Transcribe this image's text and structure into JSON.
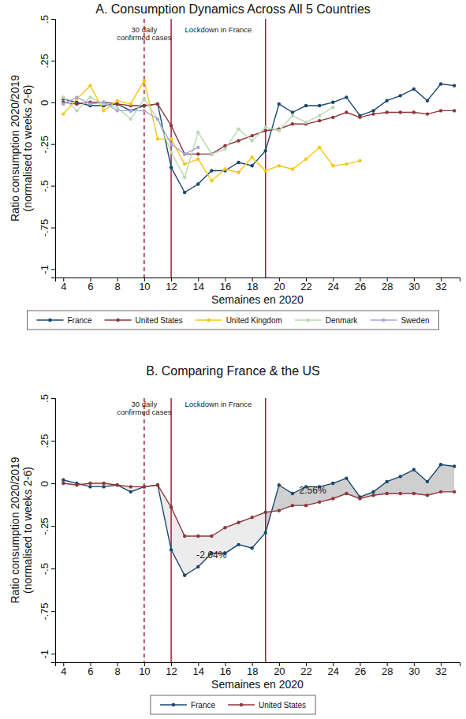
{
  "chart_data": [
    {
      "type": "line",
      "title": "A. Consumption Dynamics Across All 5 Countries",
      "x_label": "Semaines en 2020",
      "y_label": [
        "Ratio consumption 2020/2019",
        "(normalised to weeks 2-6)"
      ],
      "x": [
        4,
        5,
        6,
        7,
        8,
        9,
        10,
        11,
        12,
        13,
        14,
        15,
        16,
        17,
        18,
        19,
        20,
        21,
        22,
        23,
        24,
        25,
        26,
        27,
        28,
        29,
        30,
        31,
        32,
        33
      ],
      "xlim": [
        3.4,
        33.4
      ],
      "xticks": [
        4,
        6,
        8,
        10,
        12,
        14,
        16,
        18,
        20,
        22,
        24,
        26,
        28,
        30,
        32
      ],
      "ylim": [
        -1.05,
        0.5
      ],
      "yticks": [
        -1,
        {
          "value": -0.75,
          "label": "-.75"
        },
        {
          "value": -0.5,
          "label": "-.5"
        },
        {
          "value": -0.25,
          "label": "-.25"
        },
        0,
        {
          "value": 0.25,
          "label": ".25"
        },
        {
          "value": 0.5,
          "label": ".5"
        }
      ],
      "grid": false,
      "legend": "bottom",
      "marker": "circle",
      "vlines": [
        {
          "x": 10,
          "line_style": "dashed"
        },
        {
          "x": 12,
          "line_style": "solid"
        },
        {
          "x": 19,
          "line_style": "solid"
        }
      ],
      "annotations": [
        {
          "text": [
            "30 daily",
            "confirmed cases"
          ],
          "x": 10,
          "y": 0.42
        },
        {
          "text": [
            "Lockdown in France"
          ],
          "x": 15.5,
          "y": 0.42
        }
      ],
      "series": [
        {
          "name": "France",
          "color": "#1a476f",
          "values": [
            0.02,
            0.0,
            -0.02,
            -0.02,
            -0.01,
            -0.05,
            -0.02,
            -0.01,
            -0.39,
            -0.54,
            -0.49,
            -0.41,
            -0.41,
            -0.36,
            -0.38,
            -0.29,
            -0.01,
            -0.06,
            -0.02,
            -0.02,
            0.0,
            0.03,
            -0.08,
            -0.05,
            0.01,
            0.04,
            0.08,
            0.01,
            0.11,
            0.1
          ]
        },
        {
          "name": "United States",
          "color": "#90353b",
          "values": [
            0.0,
            -0.01,
            0.0,
            0.0,
            -0.01,
            -0.02,
            -0.02,
            -0.01,
            -0.14,
            -0.31,
            -0.31,
            -0.31,
            -0.26,
            -0.23,
            -0.2,
            -0.17,
            -0.16,
            -0.13,
            -0.13,
            -0.11,
            -0.09,
            -0.06,
            -0.09,
            -0.07,
            -0.06,
            -0.06,
            -0.06,
            -0.07,
            -0.05,
            -0.05
          ]
        },
        {
          "name": "United Kingdom",
          "color": "#f5c710",
          "values": [
            -0.07,
            0.02,
            0.1,
            -0.05,
            0.01,
            -0.01,
            0.13,
            -0.22,
            -0.22,
            -0.37,
            -0.34,
            -0.47,
            -0.4,
            -0.42,
            -0.33,
            -0.41,
            -0.38,
            -0.4,
            -0.34,
            -0.27,
            -0.38,
            -0.37,
            -0.35,
            null,
            null,
            null,
            null,
            null,
            null,
            null
          ]
        },
        {
          "name": "Denmark",
          "color": "#b8d8b0",
          "values": [
            0.03,
            -0.05,
            0.03,
            -0.01,
            -0.03,
            -0.1,
            0.02,
            -0.1,
            -0.3,
            -0.45,
            -0.18,
            -0.31,
            -0.28,
            -0.16,
            -0.23,
            -0.15,
            -0.17,
            -0.08,
            -0.12,
            -0.08,
            -0.03,
            null,
            null,
            null,
            null,
            null,
            null,
            null,
            null,
            null
          ]
        },
        {
          "name": "Sweden",
          "color": "#a9a5e0",
          "values": [
            -0.01,
            0.03,
            -0.01,
            0.0,
            -0.05,
            -0.05,
            -0.05,
            -0.1,
            -0.25,
            -0.31,
            -0.27,
            null,
            null,
            null,
            null,
            null,
            null,
            null,
            null,
            null,
            null,
            null,
            null,
            null,
            null,
            null,
            null,
            null,
            null,
            null
          ]
        }
      ]
    },
    {
      "type": "difference",
      "title": "B. Comparing France & the US",
      "x_label": "Semaines en 2020",
      "y_label": [
        "Ratio consumption 2020/2019",
        "(normalised to weeks 2-6)"
      ],
      "x": [
        4,
        5,
        6,
        7,
        8,
        9,
        10,
        11,
        12,
        13,
        14,
        15,
        16,
        17,
        18,
        19,
        20,
        21,
        22,
        23,
        24,
        25,
        26,
        27,
        28,
        29,
        30,
        31,
        32,
        33
      ],
      "xlim": [
        3.4,
        33.4
      ],
      "xticks": [
        4,
        6,
        8,
        10,
        12,
        14,
        16,
        18,
        20,
        22,
        24,
        26,
        28,
        30,
        32
      ],
      "ylim": [
        -1.05,
        0.5
      ],
      "yticks": [
        -1,
        {
          "value": -0.75,
          "label": "-.75"
        },
        {
          "value": -0.5,
          "label": "-.5"
        },
        {
          "value": -0.25,
          "label": "-.25"
        },
        0,
        {
          "value": 0.25,
          "label": ".25"
        },
        {
          "value": 0.5,
          "label": ".5"
        }
      ],
      "grid": false,
      "legend": "bottom",
      "marker": "circle",
      "vlines": [
        {
          "x": 10,
          "line_style": "dashed"
        },
        {
          "x": 12,
          "line_style": "solid"
        },
        {
          "x": 19,
          "line_style": "solid"
        }
      ],
      "annotations": [
        {
          "text": [
            "30 daily",
            "confirmed cases"
          ],
          "x": 10,
          "y": 0.45
        },
        {
          "text": [
            "Lockdown in France"
          ],
          "x": 15.5,
          "y": 0.45
        },
        {
          "text": [
            "-2.64%"
          ],
          "x": 15,
          "y": -0.44
        },
        {
          "text": [
            "2.56%"
          ],
          "x": 22.5,
          "y": -0.06
        }
      ],
      "series": [
        {
          "name": "France",
          "color": "#1a476f",
          "values": [
            0.02,
            0.0,
            -0.02,
            -0.02,
            -0.01,
            -0.05,
            -0.02,
            -0.01,
            -0.39,
            -0.54,
            -0.49,
            -0.41,
            -0.41,
            -0.36,
            -0.38,
            -0.29,
            -0.01,
            -0.06,
            -0.02,
            -0.02,
            0.0,
            0.03,
            -0.08,
            -0.05,
            0.01,
            0.04,
            0.08,
            0.01,
            0.11,
            0.1
          ]
        },
        {
          "name": "United States",
          "color": "#90353b",
          "values": [
            0.0,
            -0.01,
            0.0,
            0.0,
            -0.01,
            -0.02,
            -0.02,
            -0.01,
            -0.14,
            -0.31,
            -0.31,
            -0.31,
            -0.26,
            -0.23,
            -0.2,
            -0.17,
            -0.16,
            -0.13,
            -0.13,
            -0.11,
            -0.09,
            -0.06,
            -0.09,
            -0.07,
            -0.06,
            -0.06,
            -0.06,
            -0.07,
            -0.05,
            -0.05
          ]
        }
      ]
    }
  ]
}
